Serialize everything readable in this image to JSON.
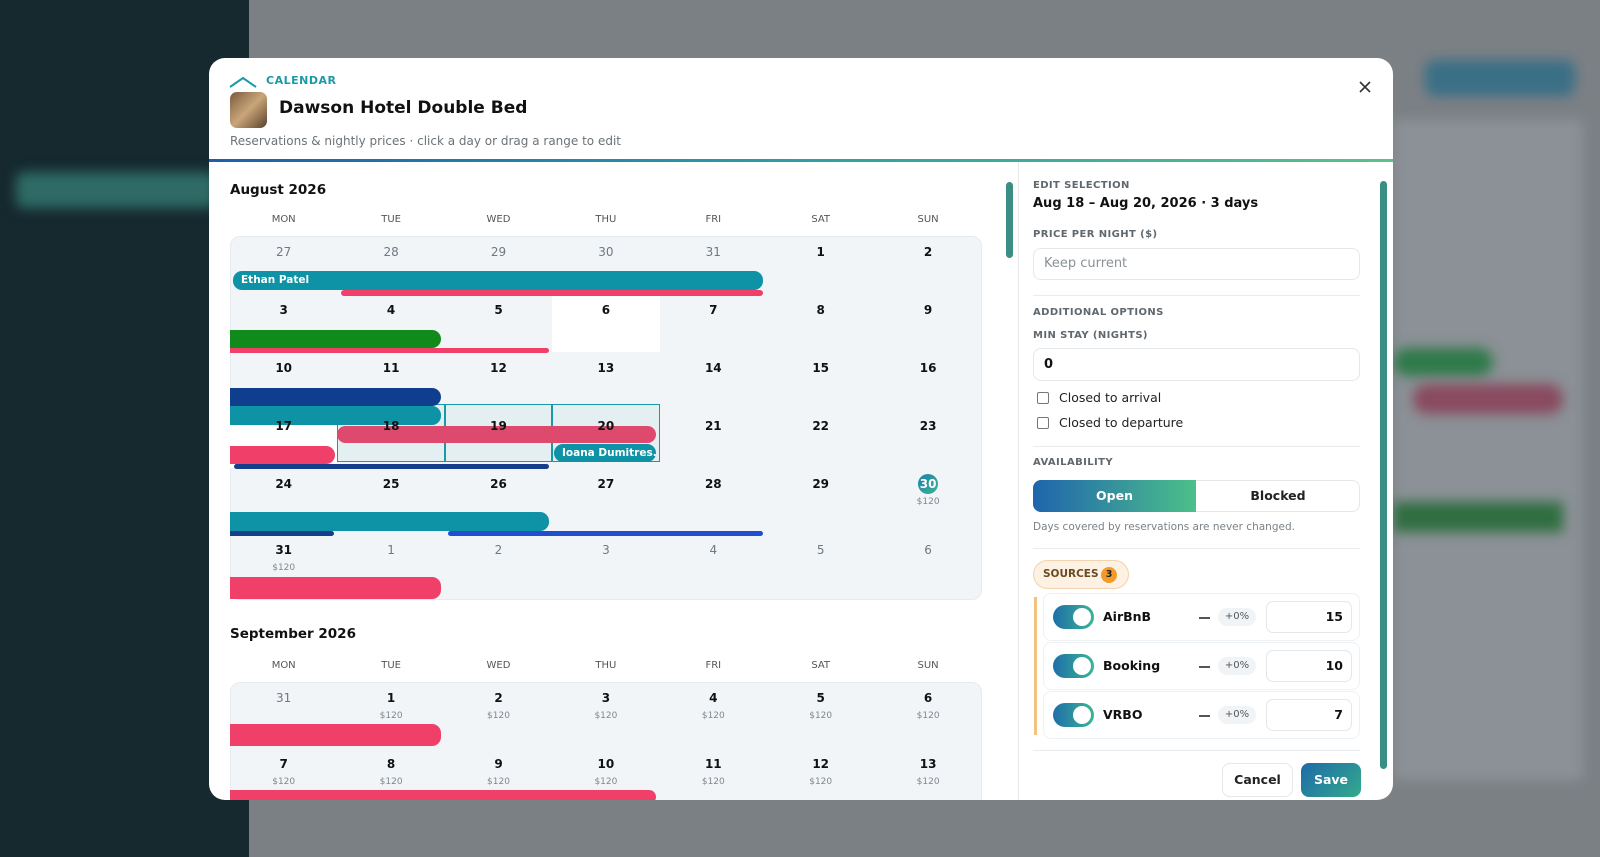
{
  "header": {
    "eyebrow": "CALENDAR",
    "title": "Dawson Hotel Double Bed",
    "subtitle": "Reservations & nightly prices · click a day or drag a range to edit"
  },
  "calendar": {
    "weekdays": [
      "MON",
      "TUE",
      "WED",
      "THU",
      "FRI",
      "SAT",
      "SUN"
    ],
    "months": [
      {
        "name": "August 2026",
        "weeks": [
          [
            {
              "day": 27
            },
            {
              "day": 28
            },
            {
              "day": 29
            },
            {
              "day": 30
            },
            {
              "day": 31
            },
            {
              "day": 1
            },
            {
              "day": 2
            }
          ],
          [
            {
              "day": 3
            },
            {
              "day": 4
            },
            {
              "day": 5
            },
            {
              "day": 6
            },
            {
              "day": 7
            },
            {
              "day": 8
            },
            {
              "day": 9
            }
          ],
          [
            {
              "day": 10
            },
            {
              "day": 11
            },
            {
              "day": 12
            },
            {
              "day": 13
            },
            {
              "day": 14
            },
            {
              "day": 15
            },
            {
              "day": 16
            }
          ],
          [
            {
              "day": 17
            },
            {
              "day": 18
            },
            {
              "day": 19
            },
            {
              "day": 20
            },
            {
              "day": 21
            },
            {
              "day": 22
            },
            {
              "day": 23
            }
          ],
          [
            {
              "day": 24
            },
            {
              "day": 25
            },
            {
              "day": 26
            },
            {
              "day": 27
            },
            {
              "day": 28
            },
            {
              "day": 29
            },
            {
              "day": 30,
              "price": "$120"
            }
          ],
          [
            {
              "day": 31,
              "price": "$120"
            },
            {
              "day": 1
            },
            {
              "day": 2
            },
            {
              "day": 3
            },
            {
              "day": 4
            },
            {
              "day": 5
            },
            {
              "day": 6
            }
          ]
        ]
      },
      {
        "name": "September 2026",
        "weeks": [
          [
            {
              "day": 31
            },
            {
              "day": 1,
              "price": "$120"
            },
            {
              "day": 2,
              "price": "$120"
            },
            {
              "day": 3,
              "price": "$120"
            },
            {
              "day": 4,
              "price": "$120"
            },
            {
              "day": 5,
              "price": "$120"
            },
            {
              "day": 6,
              "price": "$120"
            }
          ],
          [
            {
              "day": 7,
              "price": "$120"
            },
            {
              "day": 8,
              "price": "$120"
            },
            {
              "day": 9,
              "price": "$120"
            },
            {
              "day": 10,
              "price": "$120"
            },
            {
              "day": 11,
              "price": "$120"
            },
            {
              "day": 12,
              "price": "$120"
            },
            {
              "day": 13,
              "price": "$120"
            }
          ]
        ]
      }
    ],
    "reservations": [
      "Ethan Patel",
      "Ioana Dumitres..."
    ]
  },
  "panel": {
    "edit_label": "EDIT SELECTION",
    "selection": "Aug 18 – Aug 20, 2026 · 3 days",
    "price_label": "PRICE PER NIGHT ($)",
    "price_placeholder": "Keep current",
    "options_label": "ADDITIONAL OPTIONS",
    "min_stay_label": "MIN STAY (NIGHTS)",
    "min_stay": "0",
    "closed_arrival": "Closed to arrival",
    "closed_departure": "Closed to departure",
    "availability_label": "AVAILABILITY",
    "availability": [
      "Open",
      "Blocked"
    ],
    "availability_note": "Days covered by reservations are never changed.",
    "sources_label": "SOURCES",
    "sources_count": "3",
    "sources": [
      {
        "name": "AirBnB",
        "adjust": "+0%",
        "value": "15"
      },
      {
        "name": "Booking",
        "adjust": "+0%",
        "value": "10"
      },
      {
        "name": "VRBO",
        "adjust": "+0%",
        "value": "7"
      }
    ],
    "cancel": "Cancel",
    "save": "Save"
  }
}
